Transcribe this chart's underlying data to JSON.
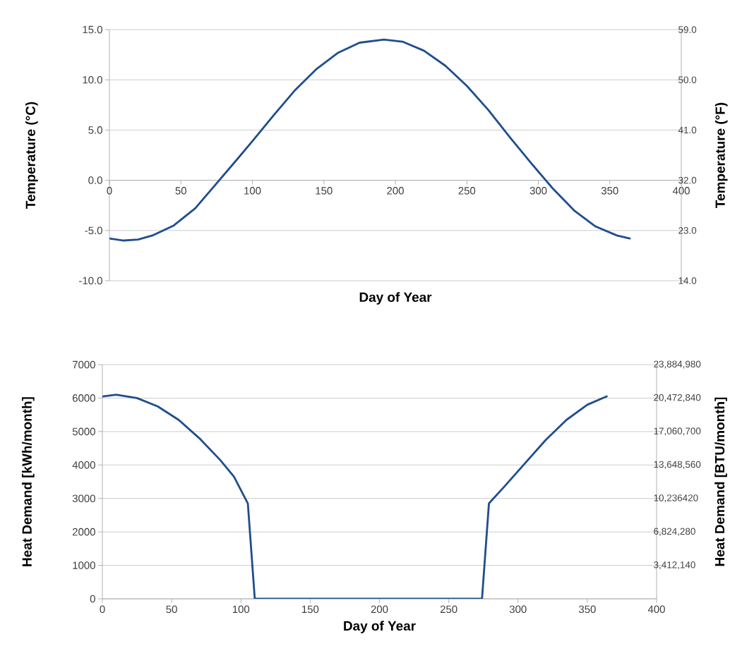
{
  "chart_data": [
    {
      "type": "line",
      "xlabel": "Day of Year",
      "ylabel": "Temperature (°C)",
      "y2label": "Temperature (°F)",
      "x": [
        0,
        10,
        20,
        30,
        45,
        60,
        75,
        90,
        100,
        115,
        130,
        145,
        160,
        175,
        192,
        205,
        220,
        235,
        250,
        265,
        280,
        295,
        310,
        325,
        340,
        355,
        364
      ],
      "series": [
        {
          "color": "#1f4e8c",
          "values": [
            -5.8,
            -6.0,
            -5.9,
            -5.5,
            -4.5,
            -2.8,
            -0.3,
            2.2,
            3.9,
            6.5,
            9.0,
            11.1,
            12.7,
            13.7,
            14.0,
            13.8,
            12.9,
            11.4,
            9.4,
            7.0,
            4.3,
            1.7,
            -0.8,
            -3.0,
            -4.6,
            -5.5,
            -5.8
          ]
        }
      ],
      "xlim": [
        0,
        400
      ],
      "xticks": [
        0,
        50,
        100,
        150,
        200,
        250,
        300,
        350,
        400
      ],
      "ylim": [
        -10,
        15
      ],
      "yticks": [
        {
          "value": -10,
          "label": "-10.0"
        },
        {
          "value": -5,
          "label": "-5.0"
        },
        {
          "value": 0,
          "label": "0.0"
        },
        {
          "value": 5,
          "label": "5.0"
        },
        {
          "value": 10,
          "label": "10.0"
        },
        {
          "value": 15,
          "label": "15.0"
        }
      ],
      "y2lim": [
        14,
        59
      ],
      "y2ticks": [
        {
          "value": 14,
          "label": "14.0"
        },
        {
          "value": 23,
          "label": "23.0"
        },
        {
          "value": 32,
          "label": "32.0"
        },
        {
          "value": 41,
          "label": "41.0"
        },
        {
          "value": 50,
          "label": "50.0"
        },
        {
          "value": 59,
          "label": "59.0"
        }
      ],
      "grid": "y"
    },
    {
      "type": "line",
      "xlabel": "Day of Year",
      "ylabel": "Heat Demand [kWh/month]",
      "y2label": "Heat Demand [BTU/month]",
      "x": [
        0,
        10,
        25,
        40,
        55,
        70,
        85,
        95,
        105,
        110,
        274,
        279,
        290,
        305,
        320,
        335,
        350,
        364
      ],
      "series": [
        {
          "color": "#1f4e8c",
          "values": [
            6050,
            6100,
            6000,
            5750,
            5350,
            4800,
            4150,
            3650,
            2850,
            0,
            0,
            2850,
            3350,
            4050,
            4750,
            5350,
            5800,
            6050
          ]
        }
      ],
      "xlim": [
        0,
        400
      ],
      "xticks": [
        0,
        50,
        100,
        150,
        200,
        250,
        300,
        350,
        400
      ],
      "ylim": [
        0,
        7000
      ],
      "yticks": [
        0,
        1000,
        2000,
        3000,
        4000,
        5000,
        6000,
        7000
      ],
      "y2lim": [
        0,
        23884980
      ],
      "y2ticks": [
        {
          "value": 3412140,
          "label": "3,412,140"
        },
        {
          "value": 6824280,
          "label": "6,824,280"
        },
        {
          "value": 10236420,
          "label": "10,236420"
        },
        {
          "value": 13648560,
          "label": "13,648,560"
        },
        {
          "value": 17060700,
          "label": "17,060,700"
        },
        {
          "value": 20472840,
          "label": "20,472,840"
        },
        {
          "value": 23884980,
          "label": "23,884,980"
        }
      ],
      "grid": "y"
    }
  ]
}
